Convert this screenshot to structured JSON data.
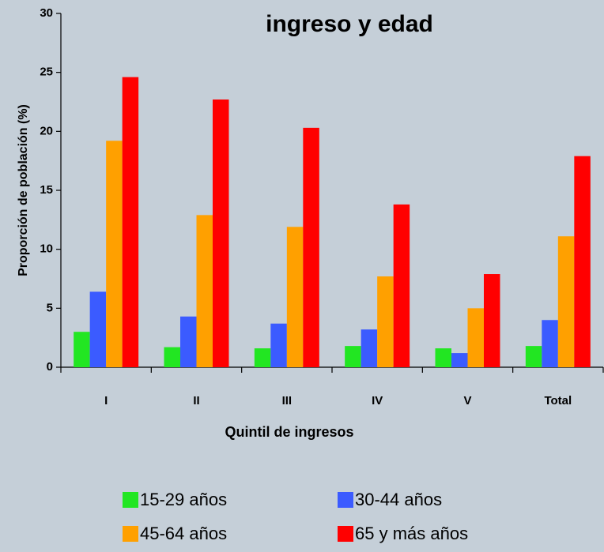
{
  "chart_data": {
    "type": "bar",
    "title": "ingreso y edad",
    "y_label": "Proporción de población (%)",
    "x_label": "Quintil de ingresos",
    "categories": [
      "I",
      "II",
      "III",
      "IV",
      "V",
      "Total"
    ],
    "series": [
      {
        "name": "15-29 años",
        "color": "#22e622",
        "values": [
          3.0,
          1.7,
          1.6,
          1.8,
          1.6,
          1.8
        ]
      },
      {
        "name": "30-44 años",
        "color": "#3b5bff",
        "values": [
          6.4,
          4.3,
          3.7,
          3.2,
          1.2,
          4.0
        ]
      },
      {
        "name": "45-64 años",
        "color": "#ffa000",
        "values": [
          19.2,
          12.9,
          11.9,
          7.7,
          5.0,
          11.1
        ]
      },
      {
        "name": "65 y más años",
        "color": "#ff0000",
        "values": [
          24.6,
          22.7,
          20.3,
          13.8,
          7.9,
          17.9
        ]
      }
    ],
    "ylim": [
      0,
      30
    ],
    "yticks": [
      0,
      5,
      10,
      15,
      20,
      25,
      30
    ],
    "grid": false
  }
}
